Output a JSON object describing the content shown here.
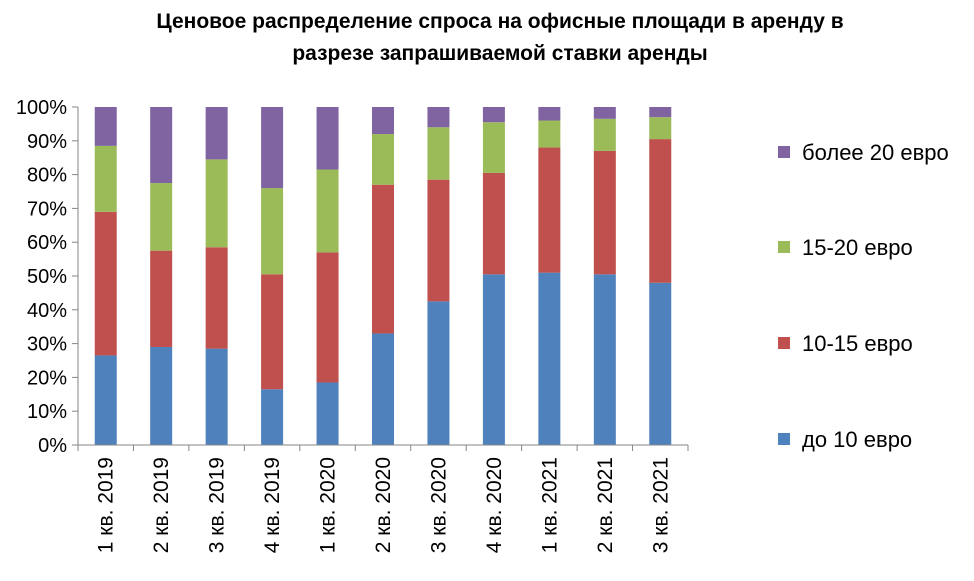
{
  "chart_data": {
    "type": "bar",
    "stacked": true,
    "percent": true,
    "title": "Ценовое распределение спроса на офисные площади в аренду в разрезе запрашиваемой ставки аренды",
    "title_lines": [
      "Ценовое распределение спроса на офисные площади в аренду в",
      "разрезе запрашиваемой ставки аренды"
    ],
    "categories": [
      "1 кв. 2019",
      "2 кв. 2019",
      "3 кв. 2019",
      "4 кв. 2019",
      "1 кв. 2020",
      "2 кв. 2020",
      "3 кв. 2020",
      "4 кв. 2020",
      "1 кв. 2021",
      "2 кв. 2021",
      "3 кв. 2021"
    ],
    "series": [
      {
        "name": "до 10 евро",
        "color": "#4F81BD",
        "values": [
          26.5,
          29,
          28.5,
          16.5,
          18.5,
          33,
          42.5,
          50.5,
          51,
          50.5,
          48
        ]
      },
      {
        "name": "10-15 евро",
        "color": "#C0504D",
        "values": [
          42.5,
          28.5,
          30,
          34,
          38.5,
          44,
          36,
          30,
          37,
          36.5,
          42.5
        ]
      },
      {
        "name": "15-20 евро",
        "color": "#9BBB59",
        "values": [
          19.5,
          20,
          26,
          25.5,
          24.5,
          15,
          15.5,
          15,
          8,
          9.5,
          6.5
        ]
      },
      {
        "name": "более 20 евро",
        "color": "#8064A2",
        "values": [
          11.5,
          22.5,
          15.5,
          24,
          18.5,
          8,
          6,
          4.5,
          4,
          3.5,
          3
        ]
      }
    ],
    "y_ticks": [
      "0%",
      "10%",
      "20%",
      "30%",
      "40%",
      "50%",
      "60%",
      "70%",
      "80%",
      "90%",
      "100%"
    ],
    "ylim": [
      0,
      100
    ],
    "grid": false,
    "legend_position": "right"
  }
}
